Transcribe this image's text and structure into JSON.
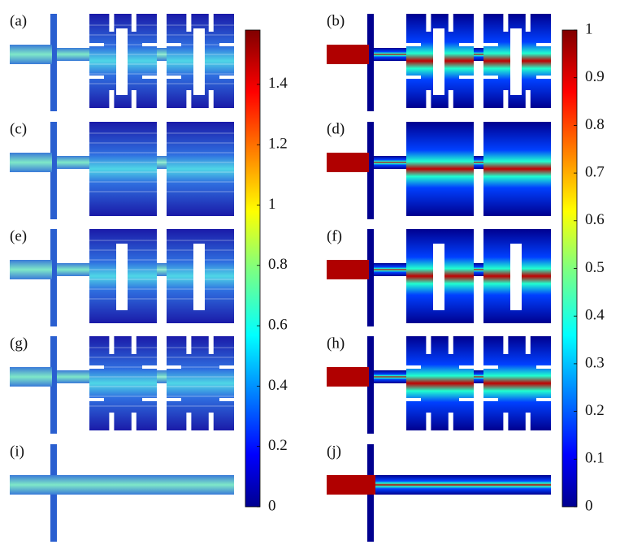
{
  "panels": [
    {
      "label": "(a)"
    },
    {
      "label": "(b)"
    },
    {
      "label": "(c)"
    },
    {
      "label": "(d)"
    },
    {
      "label": "(e)"
    },
    {
      "label": "(f)"
    },
    {
      "label": "(g)"
    },
    {
      "label": "(h)"
    },
    {
      "label": "(i)"
    },
    {
      "label": "(j)"
    }
  ],
  "colorbars": [
    {
      "ylim": [
        0,
        1.58
      ],
      "ticks": [
        0,
        0.2,
        0.4,
        0.6,
        0.8,
        1,
        1.2,
        1.4
      ]
    },
    {
      "ylim": [
        0,
        1
      ],
      "ticks": [
        0,
        0.1,
        0.2,
        0.3,
        0.4,
        0.5,
        0.6,
        0.7,
        0.8,
        0.9,
        1
      ]
    }
  ]
}
